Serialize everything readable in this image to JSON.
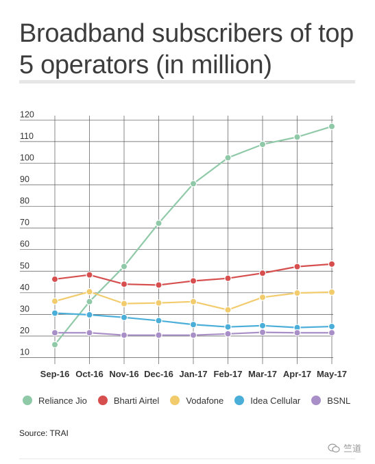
{
  "header": {
    "title": "Broadband subscribers of top 5 operators (in million)"
  },
  "source_text": "Source: TRAI",
  "watermark_text": "竺道",
  "chart_data": {
    "type": "line",
    "title": "Broadband subscribers of top 5 operators (in million)",
    "xlabel": "",
    "ylabel": "",
    "x": [
      "Sep-16",
      "Oct-16",
      "Nov-16",
      "Dec-16",
      "Jan-17",
      "Feb-17",
      "Mar-17",
      "Apr-17",
      "May-17"
    ],
    "yticks": [
      10,
      20,
      30,
      40,
      50,
      60,
      70,
      80,
      90,
      100,
      110,
      120
    ],
    "ylim": [
      7,
      122
    ],
    "grid": true,
    "legend_position": "bottom",
    "series": [
      {
        "name": "Reliance Jio",
        "color": "#8fc9a8",
        "values": [
          16.0,
          35.9,
          52.2,
          72.2,
          90.5,
          102.5,
          108.7,
          112.1,
          117.0
        ]
      },
      {
        "name": "Bharti Airtel",
        "color": "#d64e4e",
        "values": [
          46.3,
          48.3,
          44.0,
          43.6,
          45.5,
          46.7,
          49.1,
          52.1,
          53.3
        ]
      },
      {
        "name": "Vodafone",
        "color": "#f2cb6c",
        "values": [
          36.1,
          40.5,
          35.0,
          35.3,
          35.9,
          32.1,
          37.9,
          39.9,
          40.3
        ]
      },
      {
        "name": "Idea Cellular",
        "color": "#4aaed9",
        "values": [
          30.6,
          29.8,
          28.6,
          27.1,
          25.3,
          24.2,
          24.8,
          23.9,
          24.4
        ]
      },
      {
        "name": "BSNL",
        "color": "#a98fc7",
        "values": [
          21.5,
          21.5,
          20.4,
          20.4,
          20.4,
          21.0,
          21.7,
          21.5,
          21.5
        ]
      }
    ]
  }
}
